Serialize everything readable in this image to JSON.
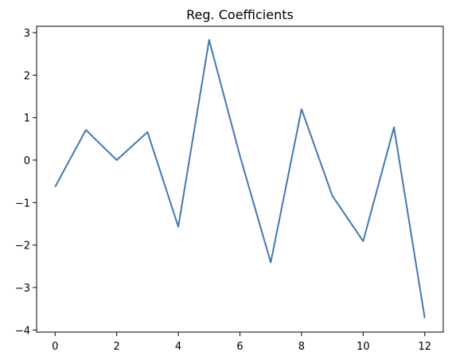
{
  "chart_data": {
    "type": "line",
    "title": "Reg. Coefficients",
    "xlabel": "",
    "ylabel": "",
    "x": [
      0,
      1,
      2,
      3,
      4,
      5,
      6,
      7,
      8,
      9,
      10,
      11,
      12
    ],
    "series": [
      {
        "values": [
          -0.63,
          0.71,
          0.0,
          0.66,
          -1.57,
          2.83,
          0.1,
          -2.41,
          1.2,
          -0.84,
          -1.91,
          0.77,
          -3.72
        ],
        "color": "#4178b2"
      }
    ],
    "xlim": [
      -0.6,
      12.6
    ],
    "ylim": [
      -4.05,
      3.15
    ],
    "x_ticks": [
      0,
      2,
      4,
      6,
      8,
      10,
      12
    ],
    "x_tick_labels": [
      "0",
      "2",
      "4",
      "6",
      "8",
      "10",
      "12"
    ],
    "y_ticks": [
      3,
      2,
      1,
      0,
      -1,
      -2,
      -3,
      -4
    ],
    "y_tick_labels": [
      "3",
      "2",
      "1",
      "0",
      "−1",
      "−2",
      "−3",
      "−4"
    ],
    "grid": false,
    "legend": "none"
  }
}
